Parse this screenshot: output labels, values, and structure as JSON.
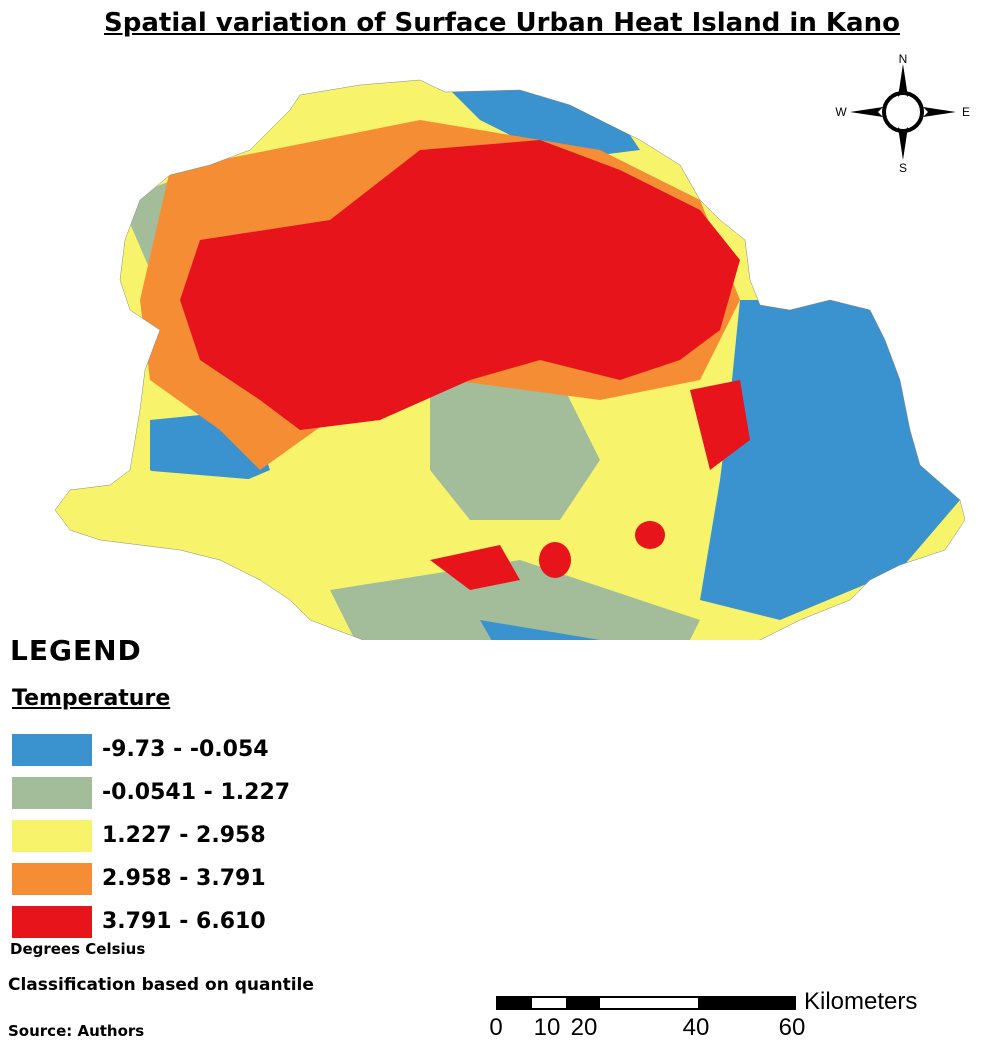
{
  "title": "Spatial variation of Surface Urban Heat Island in Kano",
  "compass": {
    "n": "N",
    "s": "S",
    "e": "E",
    "w": "W"
  },
  "legend": {
    "heading": "LEGEND",
    "subheading": "Temperature",
    "items": [
      {
        "label": "-9.73 - -0.054",
        "color": "#3a92cf"
      },
      {
        "label": "-0.0541 - 1.227",
        "color": "#a3bd9b"
      },
      {
        "label": "1.227 - 2.958",
        "color": "#f7f46b"
      },
      {
        "label": "2.958 - 3.791",
        "color": "#f58d34"
      },
      {
        "label": "3.791 - 6.610",
        "color": "#e8141c"
      }
    ],
    "unit_note": "Degrees Celsius",
    "classification_note": "Classification based on quantile",
    "source_note": "Source: Authors"
  },
  "scale": {
    "unit": "Kilometers",
    "ticks": [
      "0",
      "10",
      "20",
      "40",
      "60"
    ]
  }
}
